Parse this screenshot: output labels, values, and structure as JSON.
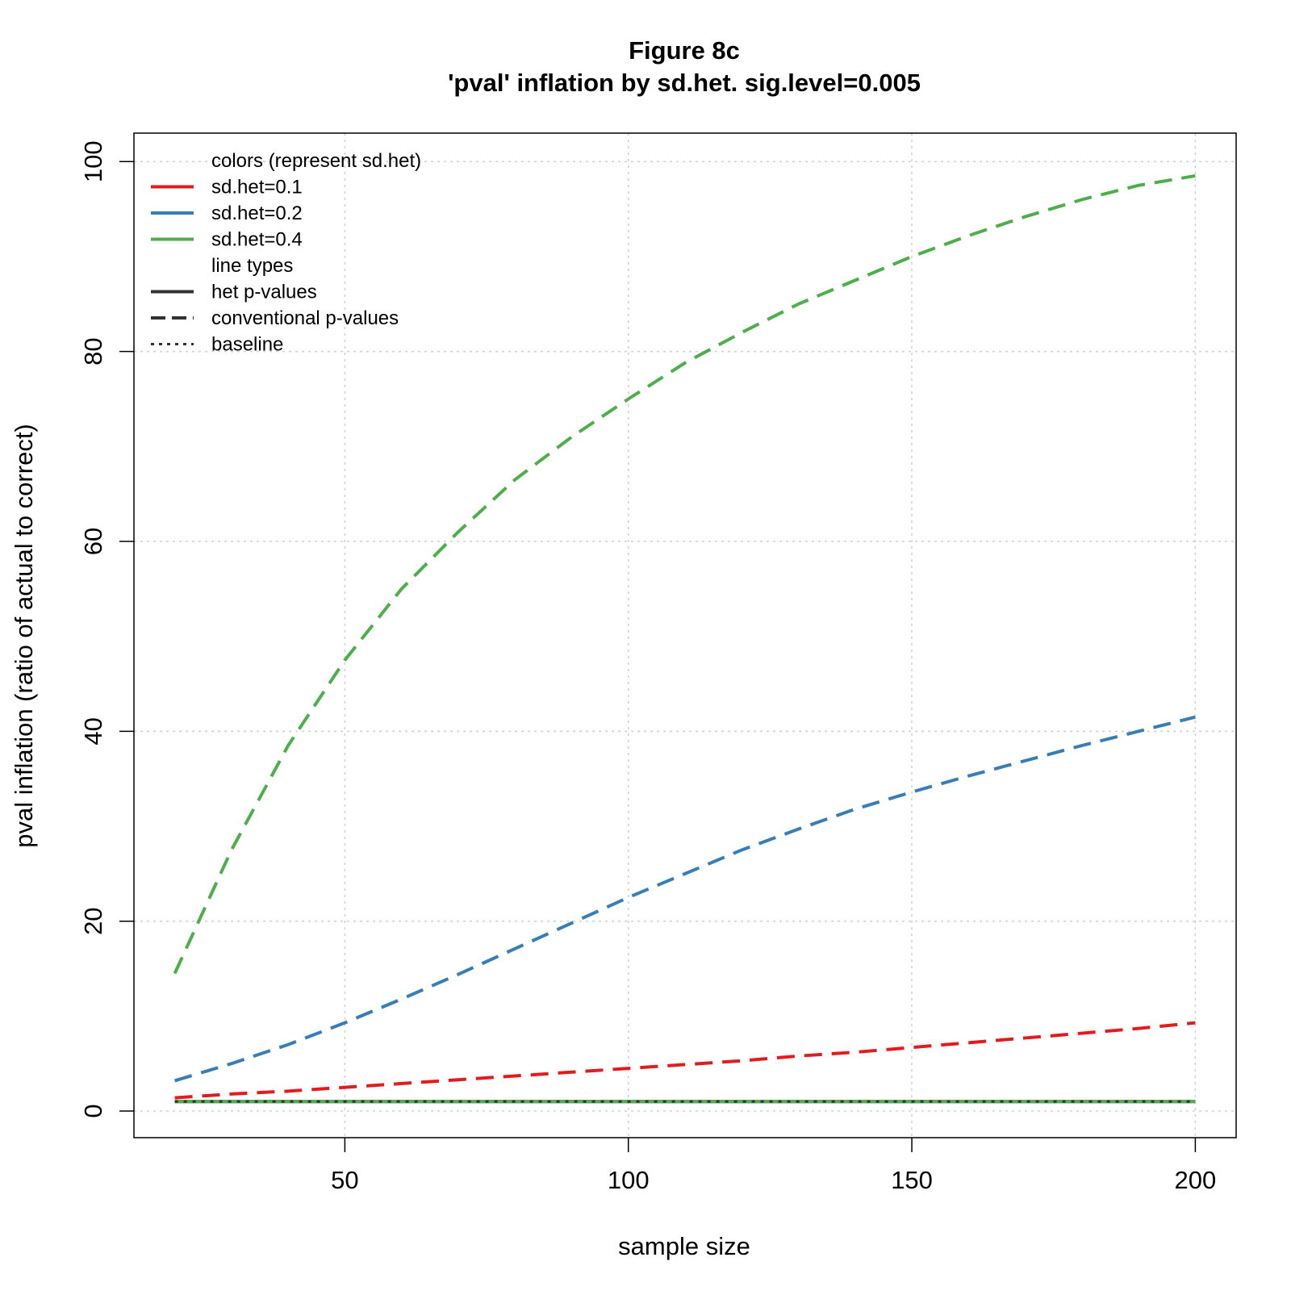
{
  "chart_data": {
    "type": "line",
    "title": "Figure 8c",
    "subtitle": "'pval' inflation by sd.het. sig.level=0.005",
    "xlabel": "sample size",
    "ylabel": "pval inflation (ratio of actual to correct)",
    "xlim": [
      12.8,
      207.2
    ],
    "ylim": [
      -2.8,
      103
    ],
    "x_ticks": [
      50,
      100,
      150,
      200
    ],
    "y_ticks": [
      0,
      20,
      40,
      60,
      80,
      100
    ],
    "grid": true,
    "legend_position": "top-left",
    "legend": {
      "color_header": "colors (represent sd.het)",
      "linetype_header": "line types",
      "color_entries": [
        {
          "label": "sd.het=0.1",
          "color": "#e41a1c"
        },
        {
          "label": "sd.het=0.2",
          "color": "#377eb8"
        },
        {
          "label": "sd.het=0.4",
          "color": "#4daf4a"
        }
      ],
      "linetype_entries": [
        {
          "label": "het p-values",
          "style": "solid",
          "color": "#333333"
        },
        {
          "label": "conventional p-values",
          "style": "dashed",
          "color": "#333333"
        },
        {
          "label": "baseline",
          "style": "dotted",
          "color": "#333333"
        }
      ]
    },
    "x": [
      20,
      30,
      40,
      50,
      60,
      70,
      80,
      90,
      100,
      110,
      120,
      130,
      140,
      150,
      160,
      170,
      180,
      190,
      200
    ],
    "series": [
      {
        "name": "sd.het=0.1",
        "kind": "conventional p-values",
        "style": "dashed",
        "color": "#e41a1c",
        "values": [
          1.4,
          1.8,
          2.1,
          2.5,
          2.9,
          3.3,
          3.7,
          4.1,
          4.5,
          4.9,
          5.3,
          5.8,
          6.2,
          6.7,
          7.2,
          7.7,
          8.2,
          8.7,
          9.3
        ]
      },
      {
        "name": "sd.het=0.2",
        "kind": "conventional p-values",
        "style": "dashed",
        "color": "#377eb8",
        "values": [
          3.2,
          5.0,
          7.0,
          9.3,
          11.8,
          14.4,
          17.1,
          19.8,
          22.5,
          25.0,
          27.5,
          29.7,
          31.8,
          33.6,
          35.3,
          36.9,
          38.5,
          40.0,
          41.5
        ]
      },
      {
        "name": "sd.het=0.4",
        "kind": "conventional p-values",
        "style": "dashed",
        "color": "#4daf4a",
        "values": [
          14.5,
          27.5,
          38.5,
          47.5,
          55.0,
          61.0,
          66.5,
          71.0,
          75.0,
          78.8,
          82.0,
          85.0,
          87.5,
          90.0,
          92.2,
          94.2,
          96.0,
          97.5,
          98.5
        ]
      },
      {
        "name": "sd.het=0.1",
        "kind": "het p-values",
        "style": "solid",
        "color": "#e41a1c",
        "values": [
          1,
          1,
          1,
          1,
          1,
          1,
          1,
          1,
          1,
          1,
          1,
          1,
          1,
          1,
          1,
          1,
          1,
          1,
          1
        ]
      },
      {
        "name": "sd.het=0.2",
        "kind": "het p-values",
        "style": "solid",
        "color": "#377eb8",
        "values": [
          1,
          1,
          1,
          1,
          1,
          1,
          1,
          1,
          1,
          1,
          1,
          1,
          1,
          1,
          1,
          1,
          1,
          1,
          1
        ]
      },
      {
        "name": "sd.het=0.4",
        "kind": "het p-values",
        "style": "solid",
        "color": "#4daf4a",
        "values": [
          1,
          1,
          1,
          1,
          1,
          1,
          1,
          1,
          1,
          1,
          1,
          1,
          1,
          1,
          1,
          1,
          1,
          1,
          1
        ]
      },
      {
        "name": "baseline",
        "kind": "baseline",
        "style": "dotted",
        "color": "#333333",
        "values": [
          1,
          1,
          1,
          1,
          1,
          1,
          1,
          1,
          1,
          1,
          1,
          1,
          1,
          1,
          1,
          1,
          1,
          1,
          1
        ]
      }
    ]
  }
}
